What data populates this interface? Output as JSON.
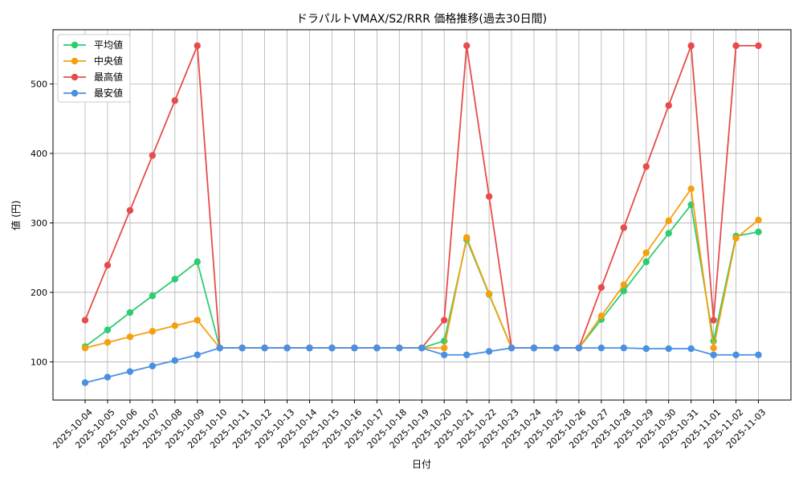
{
  "chart_data": {
    "type": "line",
    "title": "ドラパルトVMAX/S2/RRR 価格推移(過去30日間)",
    "xlabel": "日付",
    "ylabel": "値 (円)",
    "ylim": [
      45,
      578
    ],
    "yticks": [
      100,
      200,
      300,
      400,
      500
    ],
    "grid": true,
    "legend_position": "top-left",
    "categories": [
      "2025-10-04",
      "2025-10-05",
      "2025-10-06",
      "2025-10-07",
      "2025-10-08",
      "2025-10-09",
      "2025-10-10",
      "2025-10-11",
      "2025-10-12",
      "2025-10-13",
      "2025-10-14",
      "2025-10-15",
      "2025-10-16",
      "2025-10-17",
      "2025-10-18",
      "2025-10-19",
      "2025-10-20",
      "2025-10-21",
      "2025-10-22",
      "2025-10-23",
      "2025-10-24",
      "2025-10-25",
      "2025-10-26",
      "2025-10-27",
      "2025-10-28",
      "2025-10-29",
      "2025-10-30",
      "2025-10-31",
      "2025-11-01",
      "2025-11-02",
      "2025-11-03"
    ],
    "series": [
      {
        "name": "平均値",
        "color": "#2ecc71",
        "values": [
          122,
          146,
          171,
          195,
          219,
          244,
          120,
          120,
          120,
          120,
          120,
          120,
          120,
          120,
          120,
          120,
          130,
          276,
          197,
          120,
          120,
          120,
          120,
          161,
          202,
          244,
          285,
          326,
          130,
          281,
          287
        ]
      },
      {
        "name": "中央値",
        "color": "#f5a00f",
        "values": [
          120,
          128,
          136,
          144,
          152,
          160,
          120,
          120,
          120,
          120,
          120,
          120,
          120,
          120,
          120,
          120,
          120,
          279,
          198,
          120,
          120,
          120,
          120,
          166,
          211,
          257,
          303,
          349,
          120,
          278,
          304
        ]
      },
      {
        "name": "最高値",
        "color": "#e74c4c",
        "values": [
          160,
          239,
          318,
          397,
          476,
          555,
          120,
          120,
          120,
          120,
          120,
          120,
          120,
          120,
          120,
          120,
          160,
          555,
          338,
          120,
          120,
          120,
          120,
          207,
          293,
          381,
          469,
          555,
          160,
          555,
          555
        ]
      },
      {
        "name": "最安値",
        "color": "#4a90e2",
        "values": [
          70,
          78,
          86,
          94,
          102,
          110,
          120,
          120,
          120,
          120,
          120,
          120,
          120,
          120,
          120,
          120,
          110,
          110,
          115,
          120,
          120,
          120,
          120,
          120,
          120,
          119,
          119,
          119,
          110,
          110,
          110
        ]
      }
    ]
  }
}
